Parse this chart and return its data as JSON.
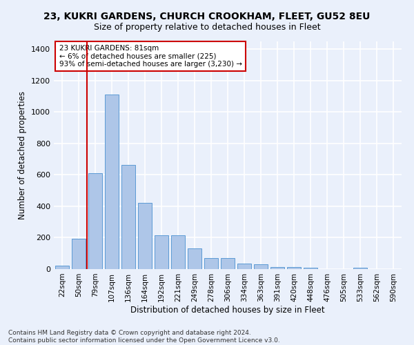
{
  "title_line1": "23, KUKRI GARDENS, CHURCH CROOKHAM, FLEET, GU52 8EU",
  "title_line2": "Size of property relative to detached houses in Fleet",
  "xlabel": "Distribution of detached houses by size in Fleet",
  "ylabel": "Number of detached properties",
  "bar_labels": [
    "22sqm",
    "50sqm",
    "79sqm",
    "107sqm",
    "136sqm",
    "164sqm",
    "192sqm",
    "221sqm",
    "249sqm",
    "278sqm",
    "306sqm",
    "334sqm",
    "363sqm",
    "391sqm",
    "420sqm",
    "448sqm",
    "476sqm",
    "505sqm",
    "533sqm",
    "562sqm",
    "590sqm"
  ],
  "bar_values": [
    20,
    195,
    610,
    1110,
    665,
    420,
    215,
    215,
    130,
    70,
    70,
    35,
    30,
    15,
    15,
    10,
    0,
    0,
    10,
    0,
    0
  ],
  "bar_color": "#aec6e8",
  "bar_edge_color": "#5b9bd5",
  "ylim": [
    0,
    1450
  ],
  "yticks": [
    0,
    200,
    400,
    600,
    800,
    1000,
    1200,
    1400
  ],
  "property_line_x": 1.5,
  "annotation_title": "23 KUKRI GARDENS: 81sqm",
  "annotation_line1": "← 6% of detached houses are smaller (225)",
  "annotation_line2": "93% of semi-detached houses are larger (3,230) →",
  "footer": "Contains HM Land Registry data © Crown copyright and database right 2024.\nContains public sector information licensed under the Open Government Licence v3.0.",
  "bg_color": "#eaf0fb",
  "grid_color": "#ffffff",
  "annotation_box_color": "#ffffff",
  "annotation_box_edge": "#cc0000",
  "red_line_color": "#cc0000"
}
